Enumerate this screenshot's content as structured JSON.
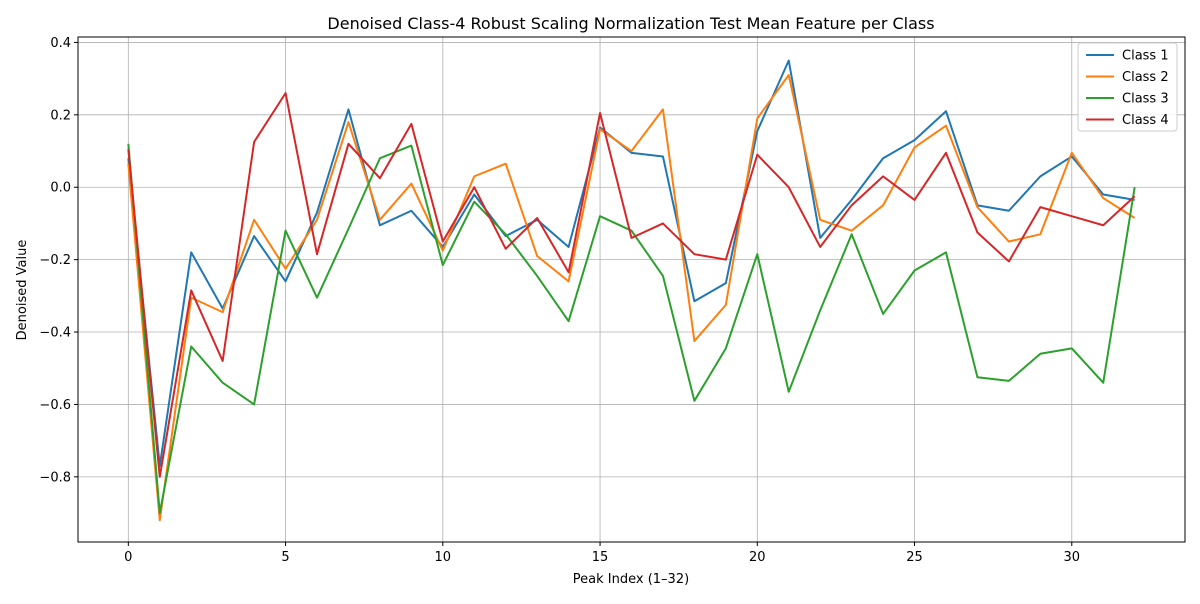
{
  "chart_data": {
    "type": "line",
    "title": "Denoised Class-4 Robust Scaling Normalization Test Mean Feature per Class",
    "xlabel": "Peak Index (1–32)",
    "ylabel": "Denoised Value",
    "xlim": [
      -1.6,
      33.6
    ],
    "ylim": [
      -0.98,
      0.415
    ],
    "xticks": [
      0,
      5,
      10,
      15,
      20,
      25,
      30
    ],
    "yticks": [
      0.4,
      0.2,
      0.0,
      -0.2,
      -0.4,
      -0.6,
      -0.8
    ],
    "ytick_labels": [
      "0.4",
      "0.2",
      "0.0",
      "−0.2",
      "−0.4",
      "−0.6",
      "−0.8"
    ],
    "grid": true,
    "legend_position": "top-right",
    "x": [
      0,
      1,
      2,
      3,
      4,
      5,
      6,
      7,
      8,
      9,
      10,
      11,
      12,
      13,
      14,
      15,
      16,
      17,
      18,
      19,
      20,
      21,
      22,
      23,
      24,
      25,
      26,
      27,
      28,
      29,
      30,
      31,
      32
    ],
    "series": [
      {
        "name": "Class 1",
        "color": "#1f77b4",
        "values": [
          0.08,
          -0.77,
          -0.18,
          -0.335,
          -0.135,
          -0.26,
          -0.07,
          0.215,
          -0.105,
          -0.065,
          -0.165,
          -0.02,
          -0.135,
          -0.09,
          -0.165,
          0.165,
          0.095,
          0.085,
          -0.315,
          -0.265,
          0.155,
          0.35,
          -0.14,
          -0.035,
          0.08,
          0.13,
          0.21,
          -0.05,
          -0.065,
          0.03,
          0.085,
          -0.02,
          -0.035
        ]
      },
      {
        "name": "Class 2",
        "color": "#ff7f0e",
        "values": [
          0.065,
          -0.92,
          -0.305,
          -0.345,
          -0.09,
          -0.225,
          -0.09,
          0.18,
          -0.09,
          0.01,
          -0.175,
          0.03,
          0.065,
          -0.19,
          -0.26,
          0.16,
          0.1,
          0.215,
          -0.425,
          -0.325,
          0.19,
          0.31,
          -0.09,
          -0.12,
          -0.05,
          0.11,
          0.17,
          -0.055,
          -0.15,
          -0.13,
          0.095,
          -0.03,
          -0.085
        ]
      },
      {
        "name": "Class 3",
        "color": "#2ca02c",
        "values": [
          0.12,
          -0.9,
          -0.44,
          -0.54,
          -0.6,
          -0.12,
          -0.305,
          -0.115,
          0.08,
          0.115,
          -0.215,
          -0.04,
          -0.13,
          -0.245,
          -0.37,
          -0.08,
          -0.12,
          -0.245,
          -0.59,
          -0.445,
          -0.185,
          -0.565,
          -0.34,
          -0.13,
          -0.35,
          -0.23,
          -0.18,
          -0.525,
          -0.535,
          -0.46,
          -0.445,
          -0.54,
          0.0
        ]
      },
      {
        "name": "Class 4",
        "color": "#d62728",
        "values": [
          0.105,
          -0.8,
          -0.285,
          -0.48,
          0.125,
          0.26,
          -0.185,
          0.12,
          0.025,
          0.175,
          -0.15,
          0.0,
          -0.17,
          -0.085,
          -0.235,
          0.205,
          -0.14,
          -0.1,
          -0.185,
          -0.2,
          0.09,
          0.0,
          -0.165,
          -0.05,
          0.03,
          -0.035,
          0.095,
          -0.125,
          -0.205,
          -0.055,
          -0.08,
          -0.105,
          -0.025
        ]
      }
    ]
  }
}
